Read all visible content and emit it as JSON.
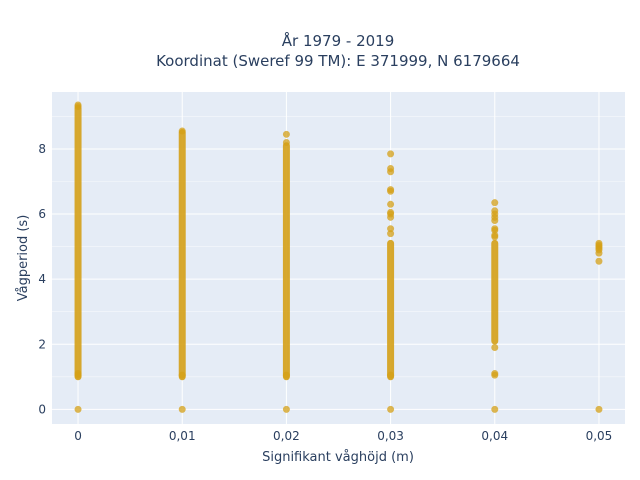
{
  "chart_data": {
    "type": "scatter",
    "title_line1": "År 1979 - 2019",
    "title_line2": "Koordinat (Sweref 99 TM): E 371999, N 6179664",
    "xlabel": "Signifikant våghöjd (m)",
    "ylabel": "Vågperiod (s)",
    "x_tick_values": [
      0,
      0.01,
      0.02,
      0.03,
      0.04,
      0.05
    ],
    "x_tick_labels": [
      "0",
      "0,01",
      "0,02",
      "0,03",
      "0,04",
      "0,05"
    ],
    "y_tick_values": [
      0,
      2,
      4,
      6,
      8
    ],
    "y_tick_labels": [
      "0",
      "2",
      "4",
      "6",
      "8"
    ],
    "xlim": [
      -0.0025,
      0.0525
    ],
    "ylim": [
      -0.45,
      9.75
    ],
    "grid": true,
    "colors": {
      "marker": "#D4A017",
      "plot_bg": "#E5ECF6",
      "grid": "#ffffff",
      "text": "#2a3f5f"
    },
    "series": [
      {
        "columns": [
          {
            "x": 0,
            "segments": [
              [
                1.0,
                9.25
              ]
            ],
            "points": [
              0,
              1.05,
              1.1,
              9.3,
              9.35
            ]
          },
          {
            "x": 0.01,
            "segments": [
              [
                1.0,
                8.5
              ]
            ],
            "points": [
              0,
              1.05,
              8.55
            ]
          },
          {
            "x": 0.02,
            "segments": [
              [
                1.0,
                8.1
              ]
            ],
            "points": [
              0,
              1.05,
              8.2,
              8.45
            ]
          },
          {
            "x": 0.03,
            "segments": [
              [
                1.0,
                5.1
              ]
            ],
            "points": [
              0,
              1.05,
              5.4,
              5.55,
              5.9,
              6.0,
              6.05,
              6.3,
              6.7,
              6.75,
              7.3,
              7.4,
              7.85
            ]
          },
          {
            "x": 0.04,
            "segments": [
              [
                2.1,
                5.1
              ]
            ],
            "points": [
              0,
              1.05,
              1.1,
              1.9,
              5.3,
              5.35,
              5.5,
              5.55,
              5.8,
              5.9,
              6.0,
              6.1,
              6.35
            ]
          },
          {
            "x": 0.05,
            "segments": [],
            "points": [
              0,
              4.55,
              4.8,
              4.9,
              4.95,
              5.0,
              5.05,
              5.1
            ]
          }
        ]
      }
    ]
  }
}
